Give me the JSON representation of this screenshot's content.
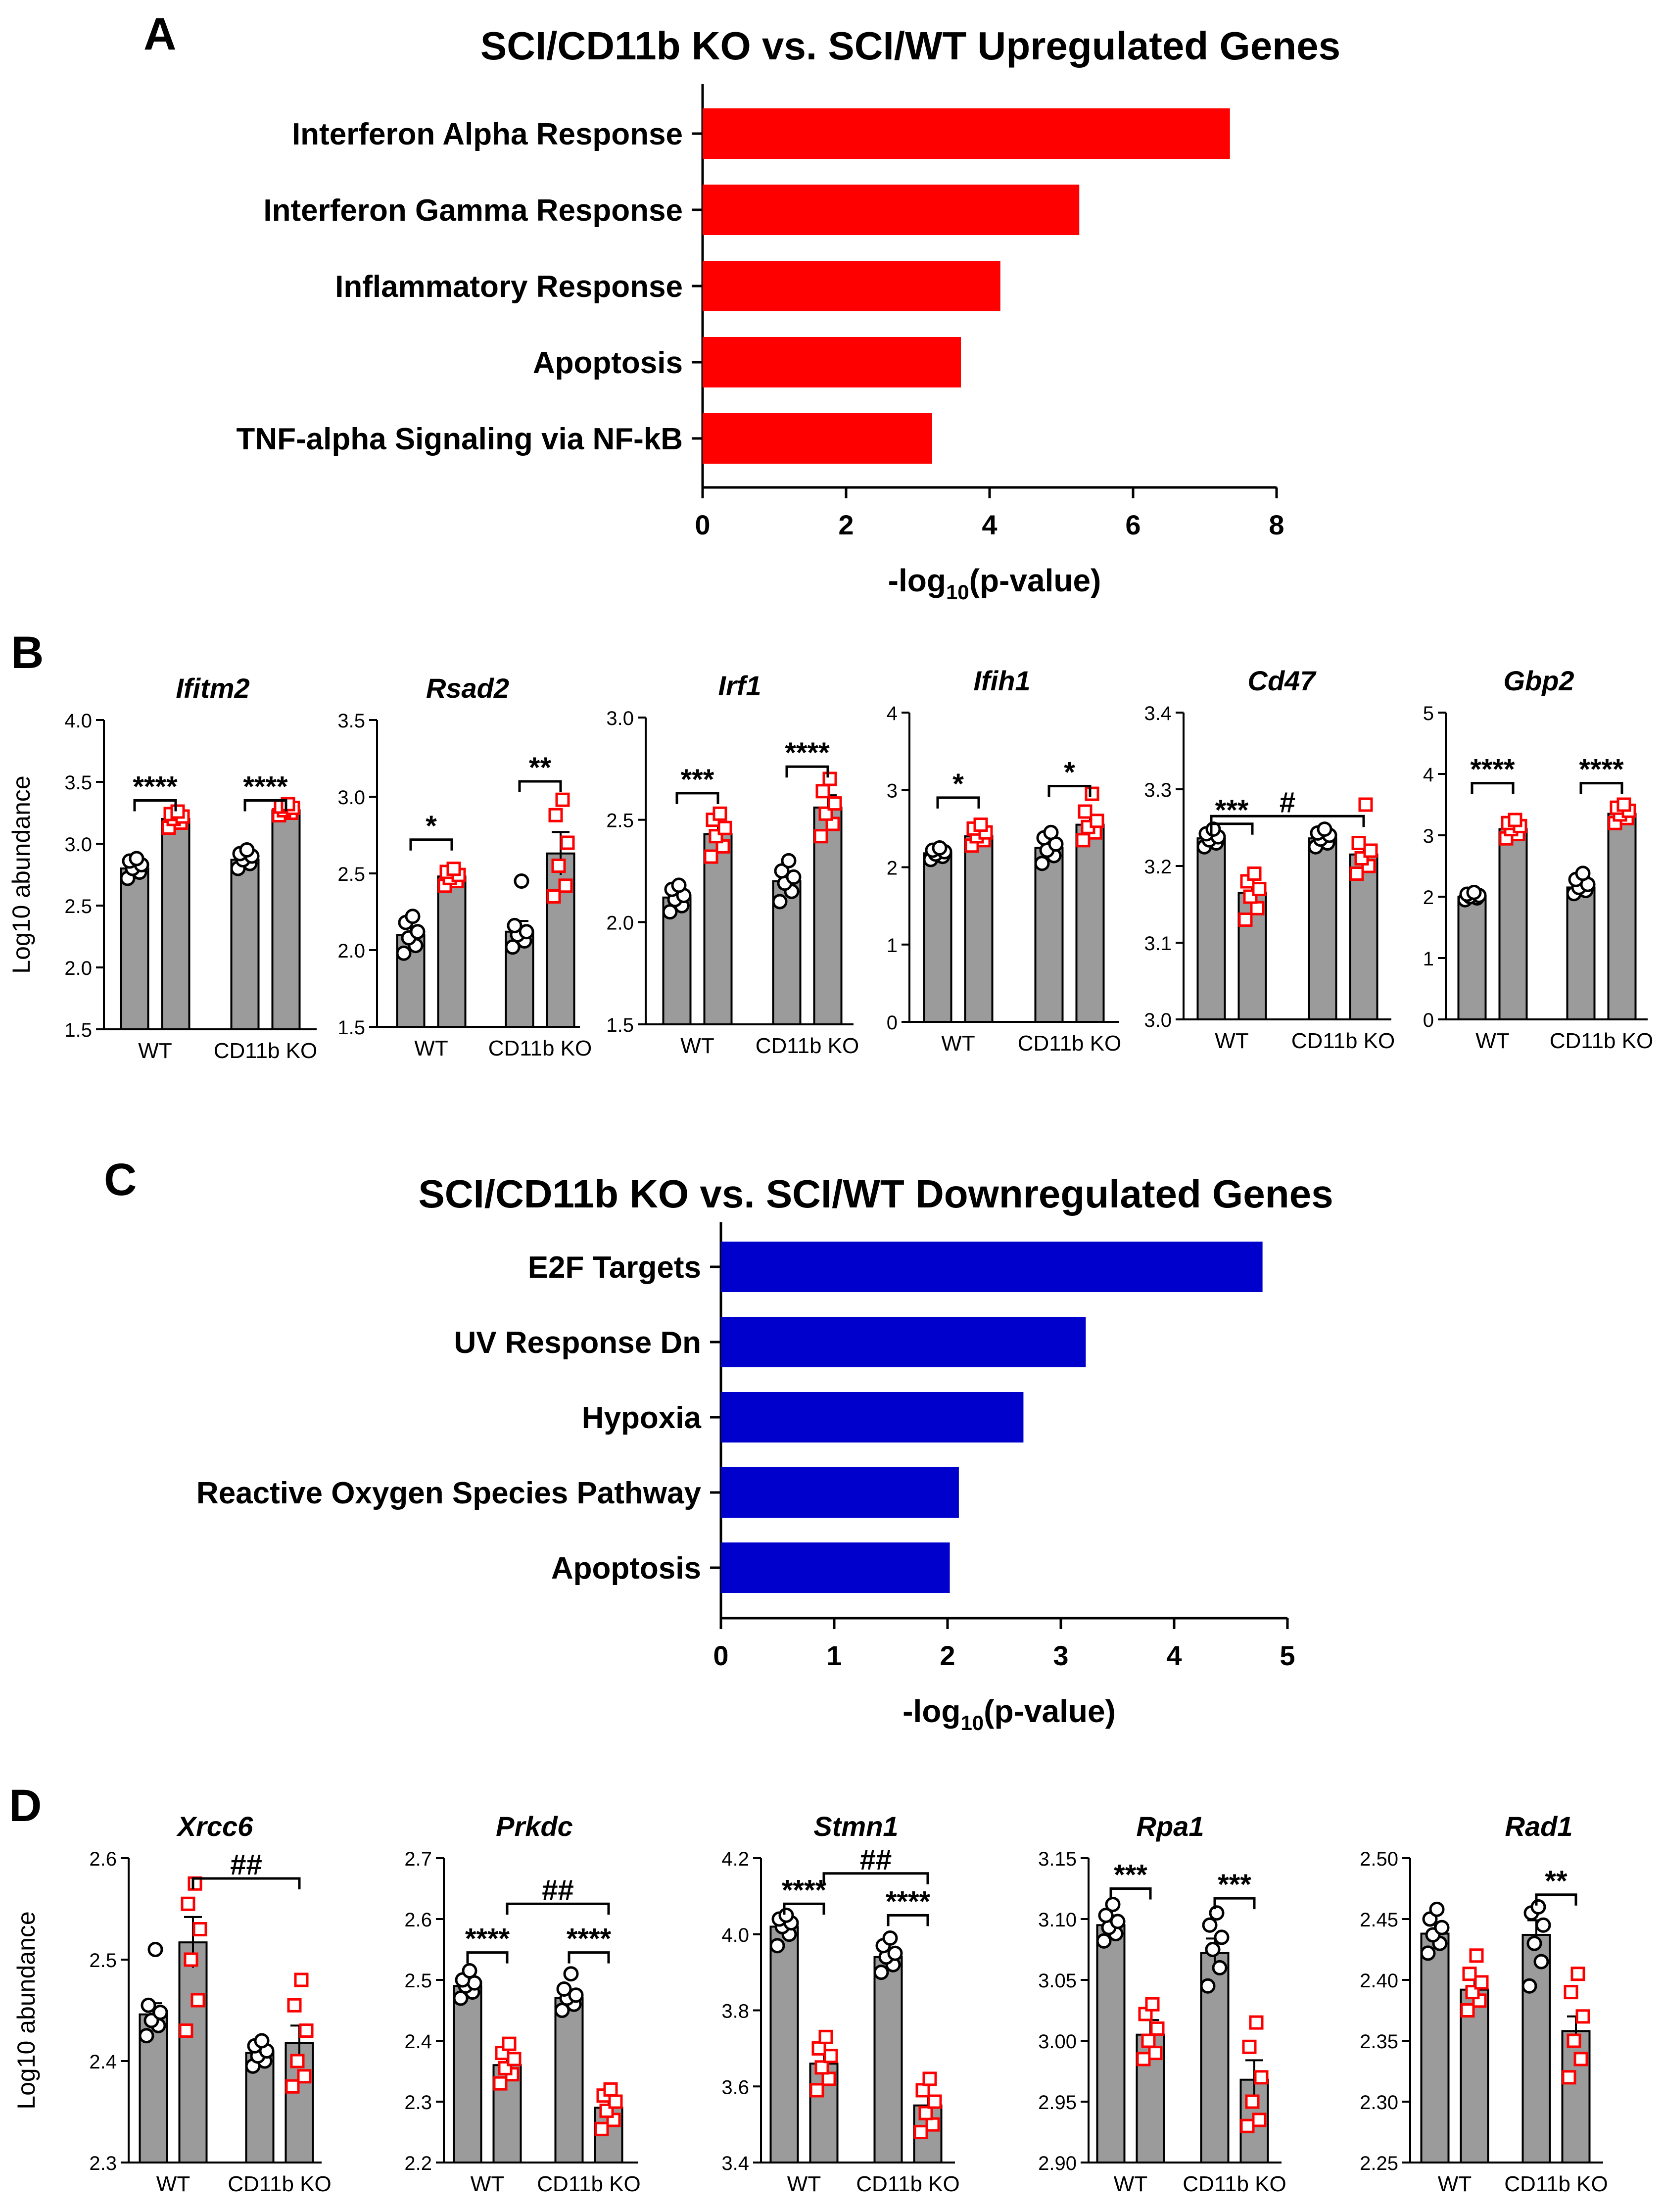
{
  "panels": [
    {
      "letter": "A"
    },
    {
      "letter": "B"
    },
    {
      "letter": "C"
    },
    {
      "letter": "D"
    }
  ],
  "colors": {
    "up_bar": "#ff0000",
    "down_bar": "#0000cd",
    "bar_gray": "#9b9b9b",
    "wt_marker": "#000000",
    "ko_marker": "#ff0000"
  },
  "chart_data": [
    {
      "id": "A",
      "type": "bar",
      "orientation": "horizontal",
      "title": "SCI/CD11b KO vs. SCI/WT Upregulated Genes",
      "xlabel_main": "-log",
      "xlabel_sub": "10",
      "xlabel_tail": "(p-value)",
      "categories": [
        "Interferon Alpha Response",
        "Interferon Gamma Response",
        "Inflammatory Response",
        "Apoptosis",
        "TNF-alpha Signaling via NF-kB"
      ],
      "values": [
        7.35,
        5.25,
        4.15,
        3.6,
        3.2
      ],
      "xlim": [
        0,
        8
      ],
      "xticks": [
        "0",
        "2",
        "4",
        "6",
        "8"
      ],
      "color": "#ff0000"
    },
    {
      "id": "C",
      "type": "bar",
      "orientation": "horizontal",
      "title": "SCI/CD11b KO vs. SCI/WT Downregulated Genes",
      "xlabel_main": "-log",
      "xlabel_sub": "10",
      "xlabel_tail": "(p-value)",
      "categories": [
        "E2F Targets",
        "UV Response Dn",
        "Hypoxia",
        "Reactive Oxygen Species Pathway",
        "Apoptosis"
      ],
      "values": [
        4.78,
        3.22,
        2.67,
        2.1,
        2.02
      ],
      "xlim": [
        0,
        5
      ],
      "xticks": [
        "0",
        "1",
        "2",
        "3",
        "4",
        "5"
      ],
      "color": "#0000cd"
    },
    {
      "id": "B1",
      "type": "bar",
      "gene": "Ifitm2",
      "ylabel": "Log10 abundance",
      "ylim": [
        1.5,
        4.0
      ],
      "yticks": [
        "1.5",
        "2.0",
        "2.5",
        "3.0",
        "3.5",
        "4.0"
      ],
      "groups": [
        "WT",
        "CD11b KO"
      ],
      "means": [
        2.8,
        3.2,
        2.87,
        3.27
      ],
      "errors": [
        0.04,
        0.04,
        0.03,
        0.03
      ],
      "points": [
        [
          2.72,
          2.77,
          2.8,
          2.83,
          2.86,
          2.88
        ],
        [
          3.13,
          3.17,
          3.2,
          3.22,
          3.24,
          3.26
        ],
        [
          2.8,
          2.84,
          2.87,
          2.9,
          2.92,
          2.95
        ],
        [
          3.23,
          3.25,
          3.27,
          3.29,
          3.3,
          3.32
        ]
      ],
      "brackets": [
        {
          "from": 0,
          "to": 1,
          "label": "****",
          "y": 3.35
        },
        {
          "from": 2,
          "to": 3,
          "label": "****",
          "y": 3.35
        }
      ]
    },
    {
      "id": "B2",
      "type": "bar",
      "gene": "Rsad2",
      "ylabel": "",
      "ylim": [
        1.5,
        3.5
      ],
      "yticks": [
        "1.5",
        "2.0",
        "2.5",
        "3.0",
        "3.5"
      ],
      "groups": [
        "WT",
        "CD11b KO"
      ],
      "means": [
        2.1,
        2.48,
        2.12,
        2.63
      ],
      "errors": [
        0.05,
        0.03,
        0.07,
        0.14
      ],
      "points": [
        [
          1.98,
          2.03,
          2.08,
          2.12,
          2.18,
          2.22
        ],
        [
          2.42,
          2.45,
          2.47,
          2.49,
          2.51,
          2.53
        ],
        [
          2.02,
          2.06,
          2.1,
          2.12,
          2.16,
          2.45
        ],
        [
          2.35,
          2.42,
          2.55,
          2.7,
          2.88,
          2.98
        ]
      ],
      "brackets": [
        {
          "from": 0,
          "to": 1,
          "label": "*",
          "y": 2.72
        },
        {
          "from": 2,
          "to": 3,
          "label": "**",
          "y": 3.1
        }
      ]
    },
    {
      "id": "B3",
      "type": "bar",
      "gene": "Irf1",
      "ylabel": "",
      "ylim": [
        1.5,
        3.0
      ],
      "yticks": [
        "1.5",
        "2.0",
        "2.5",
        "3.0"
      ],
      "groups": [
        "WT",
        "CD11b KO"
      ],
      "means": [
        2.12,
        2.43,
        2.2,
        2.56
      ],
      "errors": [
        0.03,
        0.05,
        0.04,
        0.06
      ],
      "points": [
        [
          2.05,
          2.08,
          2.11,
          2.13,
          2.16,
          2.18
        ],
        [
          2.32,
          2.37,
          2.42,
          2.46,
          2.5,
          2.53
        ],
        [
          2.1,
          2.15,
          2.19,
          2.22,
          2.25,
          2.3
        ],
        [
          2.42,
          2.48,
          2.53,
          2.58,
          2.64,
          2.7
        ]
      ],
      "brackets": [
        {
          "from": 0,
          "to": 1,
          "label": "***",
          "y": 2.63
        },
        {
          "from": 2,
          "to": 3,
          "label": "****",
          "y": 2.76
        }
      ]
    },
    {
      "id": "B4",
      "type": "bar",
      "gene": "Ifih1",
      "ylabel": "",
      "ylim": [
        0,
        4
      ],
      "yticks": [
        "0",
        "1",
        "2",
        "3",
        "4"
      ],
      "groups": [
        "WT",
        "CD11b KO"
      ],
      "means": [
        2.18,
        2.4,
        2.25,
        2.55
      ],
      "errors": [
        0.04,
        0.07,
        0.08,
        0.1
      ],
      "points": [
        [
          2.1,
          2.14,
          2.17,
          2.2,
          2.22,
          2.25
        ],
        [
          2.28,
          2.35,
          2.4,
          2.45,
          2.5,
          2.55
        ],
        [
          2.05,
          2.15,
          2.22,
          2.3,
          2.38,
          2.45
        ],
        [
          2.35,
          2.45,
          2.52,
          2.6,
          2.72,
          2.95
        ]
      ],
      "brackets": [
        {
          "from": 0,
          "to": 1,
          "label": "*",
          "y": 2.9
        },
        {
          "from": 2,
          "to": 3,
          "label": "*",
          "y": 3.05
        }
      ]
    },
    {
      "id": "B5",
      "type": "bar",
      "gene": "Cd47",
      "ylabel": "",
      "ylim": [
        3.0,
        3.4
      ],
      "yticks": [
        "3.0",
        "3.1",
        "3.2",
        "3.3",
        "3.4"
      ],
      "groups": [
        "WT",
        "CD11b KO"
      ],
      "means": [
        3.236,
        3.165,
        3.236,
        3.215
      ],
      "errors": [
        0.006,
        0.012,
        0.005,
        0.012
      ],
      "points": [
        [
          3.225,
          3.23,
          3.234,
          3.238,
          3.242,
          3.248
        ],
        [
          3.13,
          3.145,
          3.16,
          3.17,
          3.18,
          3.19
        ],
        [
          3.225,
          3.23,
          3.235,
          3.24,
          3.243,
          3.248
        ],
        [
          3.19,
          3.2,
          3.21,
          3.22,
          3.23,
          3.28
        ]
      ],
      "brackets": [
        {
          "from": 0,
          "to": 1,
          "label": "***",
          "y": 3.255
        },
        {
          "from": 0,
          "to": 3,
          "label": "#",
          "y": 3.265
        }
      ]
    },
    {
      "id": "B6",
      "type": "bar",
      "gene": "Gbp2",
      "ylabel": "",
      "ylim": [
        0,
        5
      ],
      "yticks": [
        "0",
        "1",
        "2",
        "3",
        "4",
        "5"
      ],
      "groups": [
        "WT",
        "CD11b KO"
      ],
      "means": [
        2.0,
        3.1,
        2.15,
        3.35
      ],
      "errors": [
        0.03,
        0.05,
        0.06,
        0.05
      ],
      "points": [
        [
          1.95,
          1.98,
          2.0,
          2.02,
          2.04,
          2.07
        ],
        [
          2.95,
          3.02,
          3.1,
          3.15,
          3.2,
          3.25
        ],
        [
          2.05,
          2.1,
          2.15,
          2.2,
          2.28,
          2.38
        ],
        [
          3.2,
          3.28,
          3.34,
          3.4,
          3.45,
          3.5
        ]
      ],
      "brackets": [
        {
          "from": 0,
          "to": 1,
          "label": "****",
          "y": 3.85
        },
        {
          "from": 2,
          "to": 3,
          "label": "****",
          "y": 3.85
        }
      ]
    },
    {
      "id": "D1",
      "type": "bar",
      "gene": "Xrcc6",
      "ylabel": "Log10 abundance",
      "ylim": [
        2.3,
        2.6
      ],
      "yticks": [
        "2.3",
        "2.4",
        "2.5",
        "2.6"
      ],
      "groups": [
        "WT",
        "CD11b KO"
      ],
      "means": [
        2.446,
        2.517,
        2.408,
        2.418
      ],
      "errors": [
        0.011,
        0.025,
        0.006,
        0.017
      ],
      "points": [
        [
          2.425,
          2.435,
          2.44,
          2.448,
          2.455,
          2.51
        ],
        [
          2.43,
          2.46,
          2.5,
          2.53,
          2.555,
          2.575
        ],
        [
          2.395,
          2.4,
          2.405,
          2.41,
          2.415,
          2.42
        ],
        [
          2.375,
          2.385,
          2.4,
          2.43,
          2.455,
          2.48
        ]
      ],
      "brackets": [
        {
          "from": 1,
          "to": 3,
          "label": "##",
          "y": 2.58
        }
      ]
    },
    {
      "id": "D2",
      "type": "bar",
      "gene": "Prkdc",
      "ylabel": "",
      "ylim": [
        2.2,
        2.7
      ],
      "yticks": [
        "2.2",
        "2.3",
        "2.4",
        "2.5",
        "2.6",
        "2.7"
      ],
      "groups": [
        "WT",
        "CD11b KO"
      ],
      "means": [
        2.49,
        2.36,
        2.47,
        2.29
      ],
      "errors": [
        0.007,
        0.015,
        0.01,
        0.015
      ],
      "points": [
        [
          2.47,
          2.48,
          2.49,
          2.495,
          2.5,
          2.515
        ],
        [
          2.33,
          2.345,
          2.355,
          2.37,
          2.38,
          2.395
        ],
        [
          2.45,
          2.46,
          2.47,
          2.475,
          2.485,
          2.51
        ],
        [
          2.255,
          2.27,
          2.285,
          2.3,
          2.31,
          2.32
        ]
      ],
      "brackets": [
        {
          "from": 0,
          "to": 1,
          "label": "****",
          "y": 2.545
        },
        {
          "from": 2,
          "to": 3,
          "label": "****",
          "y": 2.545
        },
        {
          "from": 1,
          "to": 3,
          "label": "##",
          "y": 2.625
        }
      ]
    },
    {
      "id": "D3",
      "type": "bar",
      "gene": "Stmn1",
      "ylabel": "",
      "ylim": [
        3.4,
        4.2
      ],
      "yticks": [
        "3.4",
        "3.6",
        "3.8",
        "4.0",
        "4.2"
      ],
      "groups": [
        "WT",
        "CD11b KO"
      ],
      "means": [
        4.02,
        3.66,
        3.94,
        3.55
      ],
      "errors": [
        0.012,
        0.03,
        0.015,
        0.025
      ],
      "points": [
        [
          3.97,
          4.0,
          4.02,
          4.03,
          4.04,
          4.05
        ],
        [
          3.59,
          3.62,
          3.65,
          3.68,
          3.7,
          3.73
        ],
        [
          3.9,
          3.92,
          3.94,
          3.95,
          3.97,
          3.99
        ],
        [
          3.48,
          3.5,
          3.53,
          3.56,
          3.59,
          3.62
        ]
      ],
      "brackets": [
        {
          "from": 0,
          "to": 1,
          "label": "****",
          "y": 4.08
        },
        {
          "from": 2,
          "to": 3,
          "label": "****",
          "y": 4.05
        },
        {
          "from": 1,
          "to": 3,
          "label": "##",
          "y": 4.16
        }
      ]
    },
    {
      "id": "D4",
      "type": "bar",
      "gene": "Rpa1",
      "ylabel": "",
      "ylim": [
        2.9,
        3.15
      ],
      "yticks": [
        "2.90",
        "2.95",
        "3.00",
        "3.05",
        "3.10",
        "3.15"
      ],
      "groups": [
        "WT",
        "CD11b KO"
      ],
      "means": [
        3.095,
        3.005,
        3.072,
        2.968
      ],
      "errors": [
        0.008,
        0.012,
        0.012,
        0.016
      ],
      "points": [
        [
          3.082,
          3.088,
          3.093,
          3.098,
          3.103,
          3.112
        ],
        [
          2.985,
          2.99,
          3.0,
          3.01,
          3.022,
          3.03
        ],
        [
          3.045,
          3.06,
          3.075,
          3.085,
          3.095,
          3.105
        ],
        [
          2.93,
          2.935,
          2.95,
          2.97,
          2.995,
          3.015
        ]
      ],
      "brackets": [
        {
          "from": 0,
          "to": 1,
          "label": "***",
          "y": 3.125
        },
        {
          "from": 2,
          "to": 3,
          "label": "***",
          "y": 3.117
        }
      ]
    },
    {
      "id": "D5",
      "type": "bar",
      "gene": "Rad1",
      "ylabel": "",
      "ylim": [
        2.25,
        2.5
      ],
      "yticks": [
        "2.25",
        "2.30",
        "2.35",
        "2.40",
        "2.45",
        "2.50"
      ],
      "groups": [
        "WT",
        "CD11b KO"
      ],
      "means": [
        2.438,
        2.392,
        2.437,
        2.358
      ],
      "errors": [
        0.008,
        0.01,
        0.012,
        0.012
      ],
      "points": [
        [
          2.422,
          2.43,
          2.437,
          2.443,
          2.45,
          2.458
        ],
        [
          2.375,
          2.383,
          2.39,
          2.398,
          2.405,
          2.42
        ],
        [
          2.395,
          2.415,
          2.43,
          2.445,
          2.455,
          2.46
        ],
        [
          2.32,
          2.335,
          2.35,
          2.37,
          2.39,
          2.405
        ]
      ],
      "brackets": [
        {
          "from": 2,
          "to": 3,
          "label": "**",
          "y": 2.47
        }
      ]
    }
  ]
}
